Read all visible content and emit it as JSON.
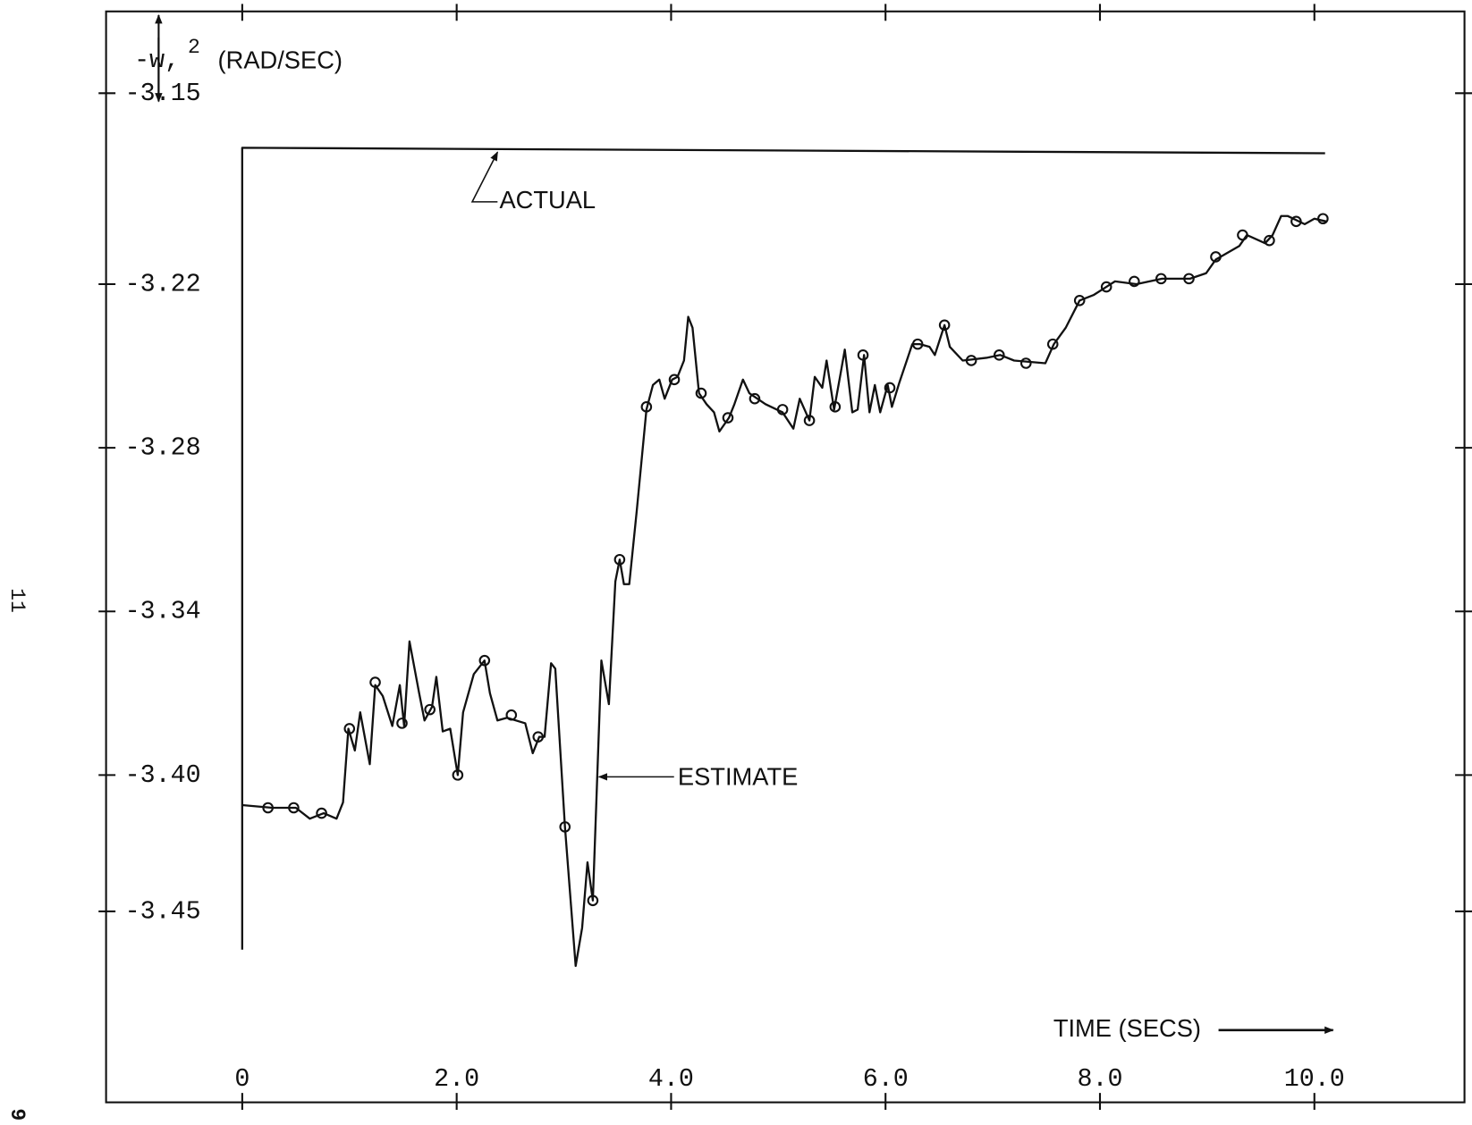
{
  "chart_data": {
    "type": "line",
    "y_label": {
      "symbol": "-w,",
      "exponent": "2",
      "unit": "(RAD/SEC)"
    },
    "x_label": "TIME (SECS)",
    "annotations": {
      "actual": "ACTUAL",
      "estimate": "ESTIMATE"
    },
    "page_numbers": [
      "11",
      "9"
    ],
    "xlim": [
      -1.27,
      11.4
    ],
    "ylim": [
      -3.52,
      -3.12
    ],
    "xticks": [
      0,
      {
        "value": 2,
        "label": "2.0"
      },
      {
        "value": 4,
        "label": "4.0"
      },
      {
        "value": 6,
        "label": "6.0"
      },
      {
        "value": 8,
        "label": "8.0"
      },
      {
        "value": 10,
        "label": "10.0"
      }
    ],
    "yticks": [
      -3.15,
      -3.22,
      -3.28,
      -3.34,
      {
        "value": -3.4,
        "label": "-3.40"
      },
      -3.45
    ],
    "grid": false,
    "color": "#111111",
    "series": [
      {
        "name": "ACTUAL",
        "x": [
          0,
          0,
          10.1
        ],
        "values": [
          -3.464,
          -3.17,
          -3.172
        ]
      },
      {
        "name": "ESTIMATE",
        "x": [
          0.0,
          0.28,
          0.5,
          0.63,
          0.76,
          0.88,
          0.94,
          0.99,
          1.05,
          1.1,
          1.19,
          1.24,
          1.31,
          1.4,
          1.47,
          1.51,
          1.56,
          1.65,
          1.7,
          1.77,
          1.81,
          1.87,
          1.94,
          2.01,
          2.06,
          2.16,
          2.26,
          2.31,
          2.38,
          2.47,
          2.64,
          2.71,
          2.77,
          2.82,
          2.88,
          2.92,
          3.01,
          3.11,
          3.17,
          3.22,
          3.27,
          3.35,
          3.42,
          3.48,
          3.52,
          3.56,
          3.61,
          3.68,
          3.77,
          3.83,
          3.89,
          3.94,
          4.01,
          4.06,
          4.12,
          4.16,
          4.2,
          4.26,
          4.33,
          4.4,
          4.45,
          4.54,
          4.59,
          4.67,
          4.73,
          4.88,
          5.04,
          5.14,
          5.2,
          5.29,
          5.34,
          5.41,
          5.45,
          5.52,
          5.58,
          5.62,
          5.69,
          5.74,
          5.8,
          5.85,
          5.9,
          5.95,
          6.02,
          6.06,
          6.13,
          6.25,
          6.32,
          6.41,
          6.46,
          6.55,
          6.6,
          6.72,
          6.94,
          7.07,
          7.2,
          7.49,
          7.57,
          7.68,
          7.81,
          7.94,
          8.06,
          8.14,
          8.34,
          8.58,
          8.84,
          8.99,
          9.08,
          9.3,
          9.37,
          9.54,
          9.61,
          9.69,
          9.75,
          9.91,
          10.0,
          10.11
        ],
        "values": [
          -3.411,
          -3.412,
          -3.412,
          -3.416,
          -3.414,
          -3.416,
          -3.41,
          -3.383,
          -3.391,
          -3.377,
          -3.396,
          -3.367,
          -3.371,
          -3.382,
          -3.367,
          -3.382,
          -3.351,
          -3.37,
          -3.38,
          -3.375,
          -3.364,
          -3.384,
          -3.383,
          -3.4,
          -3.377,
          -3.363,
          -3.358,
          -3.37,
          -3.38,
          -3.379,
          -3.381,
          -3.392,
          -3.386,
          -3.386,
          -3.359,
          -3.361,
          -3.419,
          -3.47,
          -3.456,
          -3.432,
          -3.446,
          -3.358,
          -3.374,
          -3.329,
          -3.321,
          -3.33,
          -3.33,
          -3.303,
          -3.266,
          -3.257,
          -3.255,
          -3.262,
          -3.255,
          -3.254,
          -3.248,
          -3.232,
          -3.236,
          -3.26,
          -3.264,
          -3.267,
          -3.274,
          -3.269,
          -3.264,
          -3.255,
          -3.26,
          -3.264,
          -3.267,
          -3.273,
          -3.262,
          -3.27,
          -3.254,
          -3.258,
          -3.248,
          -3.266,
          -3.253,
          -3.244,
          -3.267,
          -3.266,
          -3.246,
          -3.267,
          -3.257,
          -3.267,
          -3.257,
          -3.265,
          -3.256,
          -3.242,
          -3.242,
          -3.243,
          -3.246,
          -3.235,
          -3.243,
          -3.248,
          -3.247,
          -3.246,
          -3.248,
          -3.249,
          -3.242,
          -3.236,
          -3.226,
          -3.224,
          -3.221,
          -3.219,
          -3.22,
          -3.218,
          -3.218,
          -3.216,
          -3.211,
          -3.206,
          -3.202,
          -3.205,
          -3.202,
          -3.195,
          -3.195,
          -3.198,
          -3.196,
          -3.197
        ],
        "markers": {
          "x": [
            0.24,
            0.48,
            0.74,
            1.0,
            1.24,
            1.49,
            1.75,
            2.01,
            2.26,
            2.51,
            2.76,
            3.01,
            3.27,
            3.52,
            3.77,
            4.03,
            4.28,
            4.53,
            4.78,
            5.04,
            5.29,
            5.53,
            5.79,
            6.04,
            6.3,
            6.55,
            6.8,
            7.06,
            7.31,
            7.56,
            7.81,
            8.06,
            8.32,
            8.57,
            8.83,
            9.08,
            9.33,
            9.58,
            9.83,
            10.08
          ],
          "values": [
            -3.412,
            -3.412,
            -3.414,
            -3.383,
            -3.366,
            -3.381,
            -3.376,
            -3.4,
            -3.358,
            -3.378,
            -3.386,
            -3.419,
            -3.446,
            -3.321,
            -3.265,
            -3.255,
            -3.26,
            -3.269,
            -3.262,
            -3.266,
            -3.27,
            -3.265,
            -3.246,
            -3.258,
            -3.242,
            -3.235,
            -3.248,
            -3.246,
            -3.249,
            -3.242,
            -3.226,
            -3.221,
            -3.219,
            -3.218,
            -3.218,
            -3.21,
            -3.202,
            -3.204,
            -3.197,
            -3.196
          ]
        }
      }
    ]
  }
}
